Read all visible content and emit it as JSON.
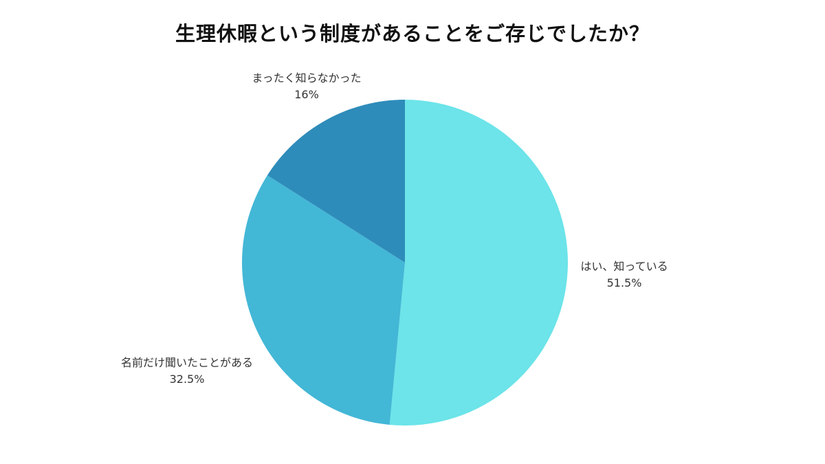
{
  "chart_data": {
    "type": "pie",
    "title": "生理休暇という制度があることをご存じでしたか？",
    "slices": [
      {
        "label": "はい、知っている",
        "value": 51.5,
        "value_label": "51.5%",
        "color": "#6ce4e9"
      },
      {
        "label": "名前だけ聞いたことがある",
        "value": 32.5,
        "value_label": "32.5%",
        "color": "#43b7d6"
      },
      {
        "label": "まったく知らなかった",
        "value": 16,
        "value_label": "16%",
        "color": "#2e8cba"
      }
    ],
    "start_angle": "12 o'clock",
    "direction": "clockwise",
    "legend": "none"
  }
}
